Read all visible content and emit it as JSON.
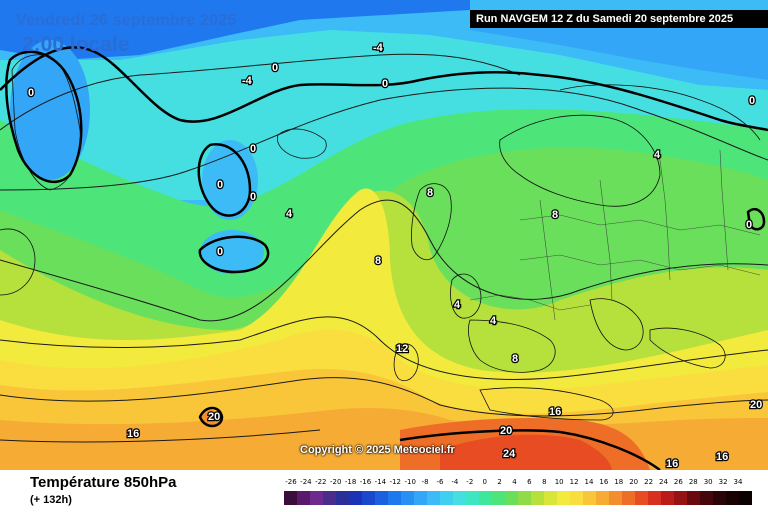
{
  "overlay": {
    "date_label": "Vendredi 26 septembre 2025",
    "time_label": "2:00 locale",
    "run_label": "Run NAVGEM 12 Z du Samedi 20 septembre 2025",
    "copyright": "Copyright © 2025 Meteociel.fr"
  },
  "footer": {
    "parameter": "Température 850hPa",
    "lead_time": "(+ 132h)"
  },
  "legend": {
    "ticks": [
      "-26",
      "-24",
      "-22",
      "-20",
      "-18",
      "-16",
      "-14",
      "-12",
      "-10",
      "-8",
      "-6",
      "-4",
      "-2",
      "0",
      "2",
      "4",
      "6",
      "8",
      "10",
      "12",
      "14",
      "16",
      "18",
      "20",
      "22",
      "24",
      "26",
      "28",
      "30",
      "32",
      "34"
    ],
    "colors": [
      "#3a0d3a",
      "#5a1a6b",
      "#6e2a8e",
      "#4a2c8c",
      "#2b2f99",
      "#1c33b6",
      "#1a48cc",
      "#1c5fe0",
      "#1f78ee",
      "#2790f5",
      "#33a6f8",
      "#3dbbf6",
      "#40cfef",
      "#45dfe2",
      "#3ee6c2",
      "#3ee89a",
      "#4de47a",
      "#6adf5c",
      "#8fdc48",
      "#b6e03c",
      "#d8e63a",
      "#f2ea3c",
      "#fadd3e",
      "#f9c63a",
      "#f6ab34",
      "#f38e2e",
      "#ee6e28",
      "#e74c22",
      "#d8301e",
      "#bb1c1a",
      "#961214",
      "#6b0a0e",
      "#45070a",
      "#2a0406",
      "#1a0203",
      "#0c0101"
    ]
  },
  "isotherm_labels": [
    {
      "text": "-4",
      "value": -4
    },
    {
      "text": "-4",
      "value": -4
    },
    {
      "text": "0",
      "value": 0
    },
    {
      "text": "0",
      "value": 0
    },
    {
      "text": "0",
      "value": 0
    },
    {
      "text": "0",
      "value": 0
    },
    {
      "text": "0",
      "value": 0
    },
    {
      "text": "0",
      "value": 0
    },
    {
      "text": "0",
      "value": 0
    },
    {
      "text": "0",
      "value": 0
    },
    {
      "text": "0",
      "value": 0
    },
    {
      "text": "4",
      "value": 4
    },
    {
      "text": "4",
      "value": 4
    },
    {
      "text": "4",
      "value": 4
    },
    {
      "text": "4",
      "value": 4
    },
    {
      "text": "8",
      "value": 8
    },
    {
      "text": "8",
      "value": 8
    },
    {
      "text": "8",
      "value": 8
    },
    {
      "text": "8",
      "value": 8
    },
    {
      "text": "12",
      "value": 12
    },
    {
      "text": "16",
      "value": 16
    },
    {
      "text": "16",
      "value": 16
    },
    {
      "text": "16",
      "value": 16
    },
    {
      "text": "16",
      "value": 16
    },
    {
      "text": "20",
      "value": 20
    },
    {
      "text": "20",
      "value": 20
    },
    {
      "text": "20",
      "value": 20
    },
    {
      "text": "24",
      "value": 24
    }
  ]
}
